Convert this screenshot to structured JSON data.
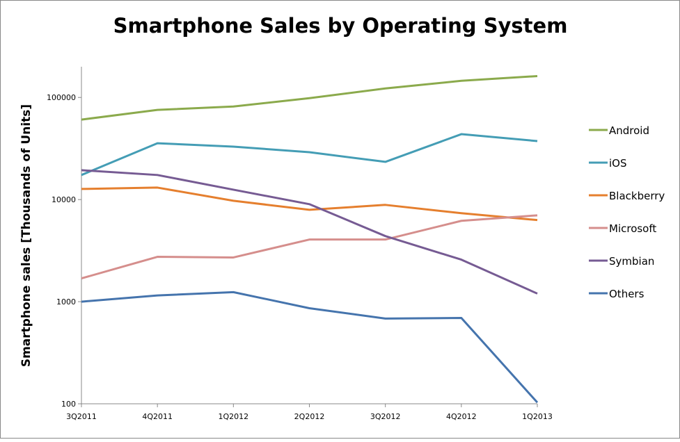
{
  "chart_data": {
    "type": "line",
    "title": "Smartphone Sales by Operating System",
    "xlabel": "",
    "ylabel": "Smartphone sales [Thousands of Units]",
    "yscale": "log",
    "ylim": [
      100,
      200000
    ],
    "yticks": [
      100,
      1000,
      10000,
      100000
    ],
    "ytick_labels": [
      "100",
      "1000",
      "10000",
      "100000"
    ],
    "categories": [
      "3Q2011",
      "4Q2011",
      "1Q2012",
      "2Q2012",
      "3Q2012",
      "4Q2012",
      "1Q2013"
    ],
    "grid": false,
    "legend": "right",
    "series": [
      {
        "name": "Android",
        "color": "#8BAA4C",
        "values": [
          60700,
          75500,
          81600,
          98400,
          122500,
          145500,
          162000
        ]
      },
      {
        "name": "iOS",
        "color": "#449DB5",
        "values": [
          17400,
          35600,
          33000,
          29100,
          23400,
          43700,
          37400
        ]
      },
      {
        "name": "Blackberry",
        "color": "#E57F2E",
        "values": [
          12700,
          13100,
          9730,
          7940,
          8870,
          7350,
          6300
        ]
      },
      {
        "name": "Microsoft",
        "color": "#D58E8C",
        "values": [
          1690,
          2750,
          2710,
          4060,
          4060,
          6190,
          7010
        ]
      },
      {
        "name": "Symbian",
        "color": "#765B93",
        "values": [
          19400,
          17400,
          12500,
          9010,
          4390,
          2580,
          1200
        ]
      },
      {
        "name": "Others",
        "color": "#4574AD",
        "values": [
          1000,
          1150,
          1240,
          863,
          683,
          693,
          103
        ]
      }
    ]
  }
}
